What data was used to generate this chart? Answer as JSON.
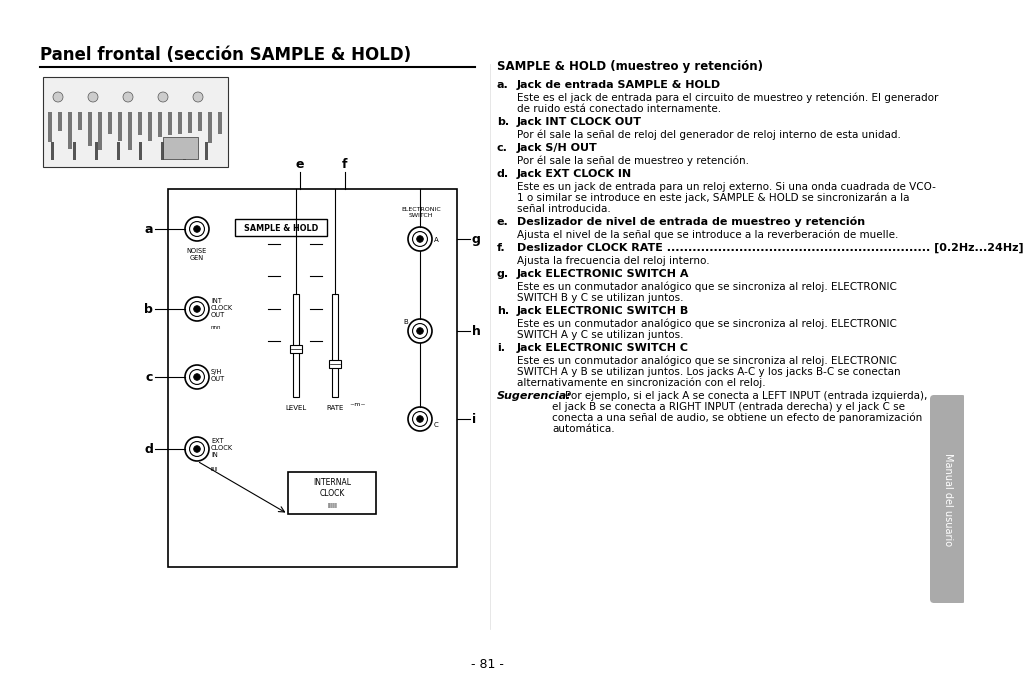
{
  "title": "Panel frontal (sección SAMPLE & HOLD)",
  "page_number": "- 81 -",
  "right_column_title": "SAMPLE & HOLD (muestreo y retención)",
  "items": [
    {
      "letter": "a.",
      "bold": "Jack de entrada SAMPLE & HOLD",
      "text": "Este es el jack de entrada para el circuito de muestreo y retención. El generador\nde ruido está conectado internamente."
    },
    {
      "letter": "b.",
      "bold": "Jack INT CLOCK OUT",
      "text": "Por él sale la señal de reloj del generador de reloj interno de esta unidad."
    },
    {
      "letter": "c.",
      "bold": "Jack S/H OUT",
      "text": "Por él sale la señal de muestreo y retención."
    },
    {
      "letter": "d.",
      "bold": "Jack EXT CLOCK IN",
      "text": "Este es un jack de entrada para un reloj externo. Si una onda cuadrada de VCO-\n1 o similar se introduce en este jack, SAMPLE & HOLD se sincronizarán a la\nseñal introducida."
    },
    {
      "letter": "e.",
      "bold": "Deslizador de nivel de entrada de muestreo y retención",
      "text": "Ajusta el nivel de la señal que se introduce a la reverberación de muelle."
    },
    {
      "letter": "f.",
      "bold": "Deslizador CLOCK RATE .............................................................. [0.2Hz...24Hz]",
      "text": "Ajusta la frecuencia del reloj interno."
    },
    {
      "letter": "g.",
      "bold": "Jack ELECTRONIC SWITCH A",
      "text": "Este es un conmutador analógico que se sincroniza al reloj. ELECTRONIC\nSWITCH B y C se utilizan juntos."
    },
    {
      "letter": "h.",
      "bold": "Jack ELECTRONIC SWITCH B",
      "text": "Este es un conmutador analógico que se sincroniza al reloj. ELECTRONIC\nSWITCH A y C se utilizan juntos."
    },
    {
      "letter": "i.",
      "bold": "Jack ELECTRONIC SWITCH C",
      "text": "Este es un conmutador analógico que se sincroniza al reloj. ELECTRONIC\nSWITCH A y B se utilizan juntos. Los jacks A-C y los jacks B-C se conectan\nalternativamente en sincronización con el reloj."
    }
  ],
  "sugerencia_bold": "Sugerencia:",
  "sugerencia_text": "Por ejemplo, si el jack A se conecta a LEFT INPUT (entrada izquierda),\nel jack B se conecta a RIGHT INPUT (entrada derecha) y el jack C se\nconecta a una señal de audio, se obtiene un efecto de panoramización\nautomática.",
  "sidebar_text": "Manual del usuario",
  "bg_color": "#ffffff",
  "text_color": "#000000",
  "sidebar_color": "#aaaaaa"
}
